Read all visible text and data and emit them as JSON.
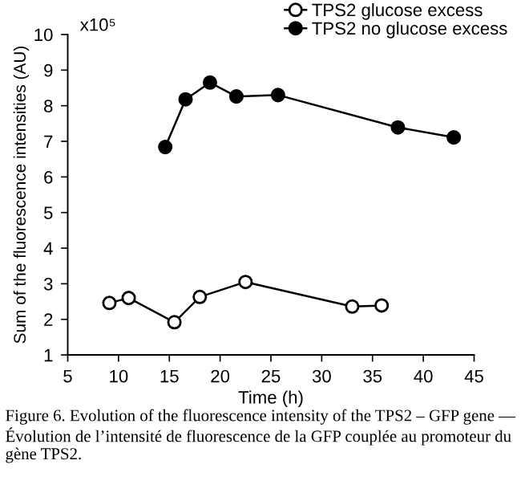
{
  "chart_data": {
    "type": "line",
    "xlabel": "Time (h)",
    "ylabel": "Sum of the fluorescence intensities (AU)",
    "xlim": [
      5,
      45
    ],
    "xticks": [
      5,
      10,
      15,
      20,
      25,
      30,
      35,
      40,
      45
    ],
    "ylim": [
      1,
      10
    ],
    "yticks": [
      1,
      2,
      3,
      4,
      5,
      6,
      7,
      8,
      9,
      10
    ],
    "marker": "circle",
    "legend": "top right",
    "grid": false,
    "series": [
      {
        "name": "TPS2 glucose excess",
        "color": "#000000",
        "x": [
          9.1,
          11.0,
          15.5,
          18.0,
          22.5,
          33.0,
          35.9
        ],
        "values": [
          2.46,
          2.6,
          1.92,
          2.63,
          3.05,
          2.36,
          2.39
        ]
      },
      {
        "name": "TPS2 no glucose excess",
        "color": "#000000",
        "x": [
          14.6,
          16.6,
          19.0,
          21.6,
          25.7,
          37.5,
          43.0
        ],
        "values": [
          6.84,
          8.18,
          8.65,
          8.26,
          8.3,
          7.39,
          7.11
        ]
      }
    ],
    "annotations": [
      "x10⁵",
      "Figure 6. Evolution of the fluorescence intensity of the TPS2 – GFP gene — Évolution de l’intensité de fluorescence de la GFP couplée au promoteur du gène TPS2."
    ]
  }
}
